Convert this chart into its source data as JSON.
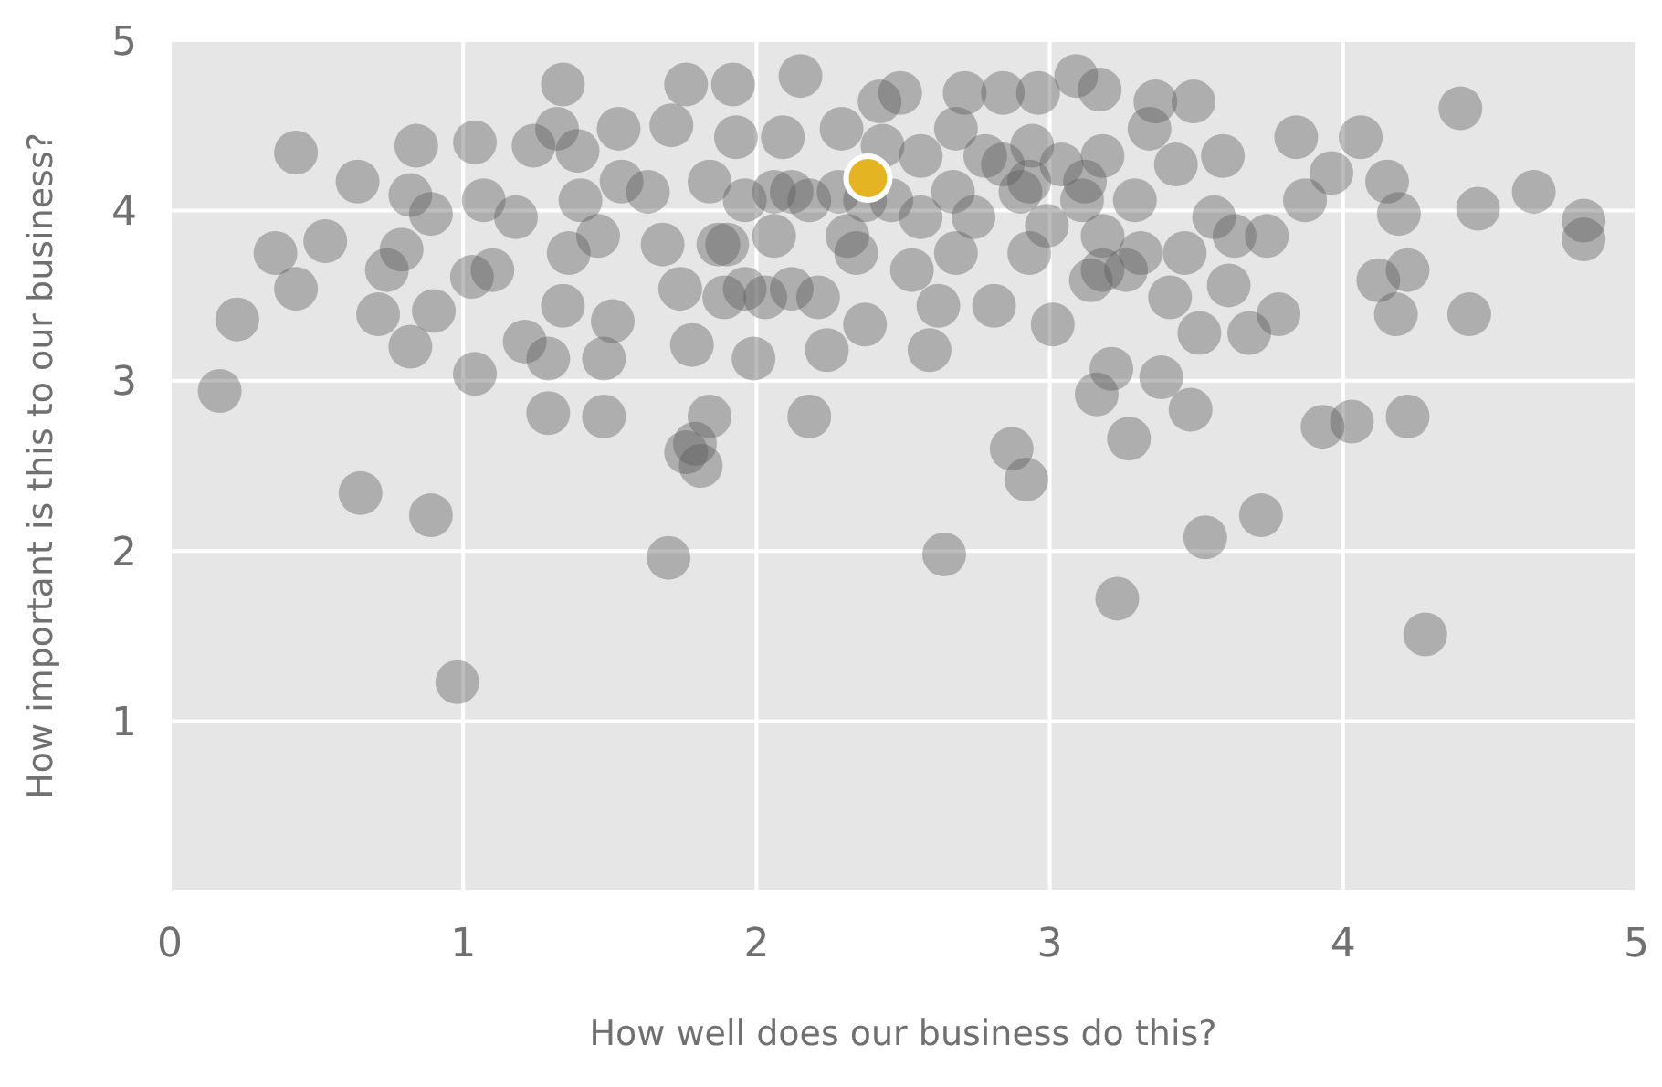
{
  "chart_data": {
    "type": "scatter",
    "xlabel": "How well does our business do this?",
    "ylabel": "How important is this to our business?",
    "xlim": [
      0,
      5
    ],
    "ylim": [
      0,
      5
    ],
    "xticks": [
      0,
      1,
      2,
      3,
      4,
      5
    ],
    "yticks": [
      1,
      2,
      3,
      4,
      5
    ],
    "grid": true,
    "marker": "circle",
    "series": [
      {
        "color": "#5a5a5a",
        "x": [
          0.23,
          0.17,
          0.43,
          0.36,
          0.43,
          0.53,
          0.64,
          0.65,
          0.71,
          0.74,
          0.79,
          0.82,
          0.84,
          0.82,
          0.89,
          0.9,
          0.89,
          0.98,
          1.03,
          1.04,
          1.04,
          1.07,
          1.1,
          1.18,
          1.21,
          1.24,
          1.29,
          1.29,
          1.32,
          1.34,
          1.34,
          1.36,
          1.39,
          1.4,
          1.46,
          1.48,
          1.48,
          1.51,
          1.53,
          1.54,
          1.63,
          1.68,
          1.71,
          1.7,
          1.74,
          1.76,
          1.78,
          1.76,
          1.81,
          1.79,
          1.84,
          1.84,
          1.87,
          1.89,
          1.92,
          1.93,
          1.96,
          1.99,
          2.03,
          2.06,
          2.09,
          2.12,
          2.15,
          2.18,
          2.21,
          2.24,
          2.28,
          2.29,
          2.34,
          2.37,
          2.42,
          2.46,
          2.49,
          2.53,
          2.56,
          2.59,
          2.62,
          2.64,
          2.67,
          2.68,
          2.71,
          2.74,
          2.78,
          2.81,
          2.84,
          2.87,
          2.9,
          2.92,
          2.94,
          2.96,
          2.99,
          3.01,
          3.04,
          3.09,
          3.11,
          3.14,
          3.16,
          3.17,
          3.18,
          3.21,
          3.23,
          3.26,
          3.27,
          3.29,
          3.34,
          3.36,
          3.38,
          3.41,
          3.43,
          3.46,
          3.48,
          3.49,
          3.51,
          3.53,
          3.56,
          3.59,
          3.61,
          3.63,
          3.68,
          3.72,
          3.74,
          3.78,
          3.84,
          3.87,
          3.93,
          3.96,
          4.03,
          4.06,
          4.12,
          4.15,
          4.18,
          4.19,
          4.22,
          4.22,
          4.28,
          4.4,
          4.43,
          4.46,
          4.65,
          4.82,
          4.82,
          2.06,
          2.18,
          2.31,
          2.84,
          2.93,
          3.12,
          3.18,
          2.37,
          2.56,
          1.9,
          1.96,
          2.12,
          2.93,
          2.68,
          2.43,
          3.18,
          3.31
        ],
        "values": [
          3.36,
          2.94,
          4.34,
          3.75,
          3.54,
          3.82,
          4.17,
          2.34,
          3.39,
          3.65,
          3.77,
          4.09,
          4.38,
          3.2,
          3.98,
          3.41,
          2.21,
          1.23,
          3.61,
          3.04,
          4.4,
          4.06,
          3.65,
          3.96,
          3.23,
          4.38,
          3.13,
          2.81,
          4.48,
          3.44,
          4.74,
          3.75,
          4.35,
          4.06,
          3.85,
          3.13,
          2.79,
          3.35,
          4.48,
          4.17,
          4.11,
          3.8,
          4.5,
          1.96,
          3.54,
          4.74,
          3.21,
          2.58,
          2.5,
          2.63,
          2.79,
          4.17,
          3.8,
          3.49,
          4.74,
          4.43,
          4.06,
          3.13,
          3.49,
          3.85,
          4.43,
          4.11,
          4.79,
          2.79,
          3.49,
          3.18,
          4.11,
          4.48,
          3.75,
          3.33,
          4.64,
          4.06,
          4.69,
          3.65,
          4.32,
          3.18,
          3.44,
          1.98,
          4.11,
          4.48,
          4.69,
          3.96,
          4.32,
          3.44,
          4.69,
          2.6,
          4.11,
          2.42,
          4.38,
          4.69,
          3.91,
          3.33,
          4.27,
          4.79,
          4.06,
          3.59,
          2.92,
          4.71,
          4.32,
          3.07,
          1.72,
          3.65,
          2.66,
          4.06,
          4.48,
          4.64,
          3.02,
          3.49,
          4.27,
          3.75,
          2.83,
          4.64,
          3.28,
          2.08,
          3.96,
          4.32,
          3.56,
          3.85,
          3.28,
          2.21,
          3.85,
          3.39,
          4.43,
          4.06,
          2.73,
          4.22,
          2.76,
          4.43,
          3.59,
          4.17,
          3.39,
          3.98,
          3.65,
          2.79,
          1.51,
          4.6,
          3.39,
          4.01,
          4.11,
          3.94,
          3.83,
          4.11,
          4.06,
          3.85,
          4.27,
          4.17,
          4.17,
          3.85,
          4.06,
          3.96,
          3.8,
          3.54,
          3.54,
          3.75,
          3.75,
          4.38,
          3.65,
          3.75
        ]
      },
      {
        "color": "#e5b422",
        "x": [
          2.38
        ],
        "values": [
          4.19
        ]
      }
    ]
  }
}
